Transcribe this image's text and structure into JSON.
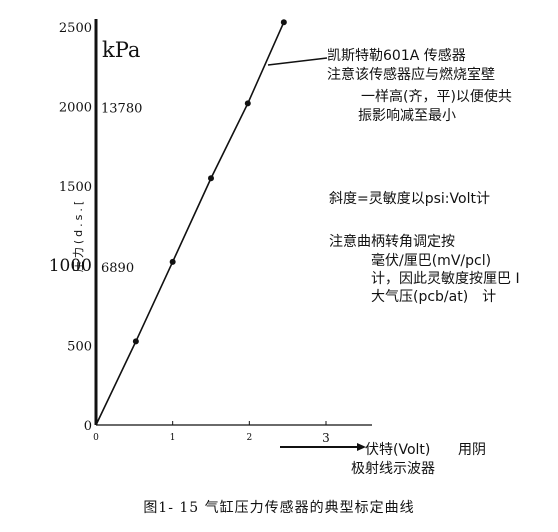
{
  "chart_data": {
    "type": "line",
    "title": "",
    "xlabel": "伏特(Volt)",
    "ylabel": "压力(d.s.[",
    "xlim": [
      0,
      3.6
    ],
    "ylim": [
      0,
      2500
    ],
    "x_ticks": [
      {
        "value": 0,
        "label": "0"
      },
      {
        "value": 1,
        "label": "1"
      },
      {
        "value": 2,
        "label": "2"
      },
      {
        "value": 3,
        "label": "3"
      }
    ],
    "y_ticks": [
      {
        "value": 0,
        "label": "0"
      },
      {
        "value": 500,
        "label": "500"
      },
      {
        "value": 1000,
        "label": "1000"
      },
      {
        "value": 1500,
        "label": "1500"
      },
      {
        "value": 2000,
        "label": "2000"
      },
      {
        "value": 2500,
        "label": "2500"
      }
    ],
    "secondary_y_unit": "kPa",
    "secondary_y_ticks": [
      {
        "value": 1000,
        "label": "6890"
      },
      {
        "value": 2000,
        "label": "13780"
      }
    ],
    "series": [
      {
        "name": "",
        "x": [
          0,
          0.52,
          1.0,
          1.5,
          1.98,
          2.45
        ],
        "y": [
          0,
          525,
          1025,
          1550,
          2020,
          2530
        ]
      }
    ],
    "grid": false,
    "legend": "none"
  },
  "notes": {
    "line1": "凯斯特勒601A 传感器",
    "line2": "注意该传感器应与燃烧室壁",
    "line3": "一样高(齐，平)以便使共",
    "line4": "振影响减至最小",
    "line5": "斜度=灵敏度以psi:Volt计",
    "line6": "注意曲柄转角调定按",
    "line7": "毫伏/厘巴(mV/pcl)",
    "line8": "计，因此灵敏度按厘巴 I",
    "line9": "大气压(pcb/at)　计"
  },
  "xlabel_extra": "用阴",
  "xlabel_line2": "极射线示波器",
  "caption": "图1- 15 气缸压力传感器的典型标定曲线"
}
